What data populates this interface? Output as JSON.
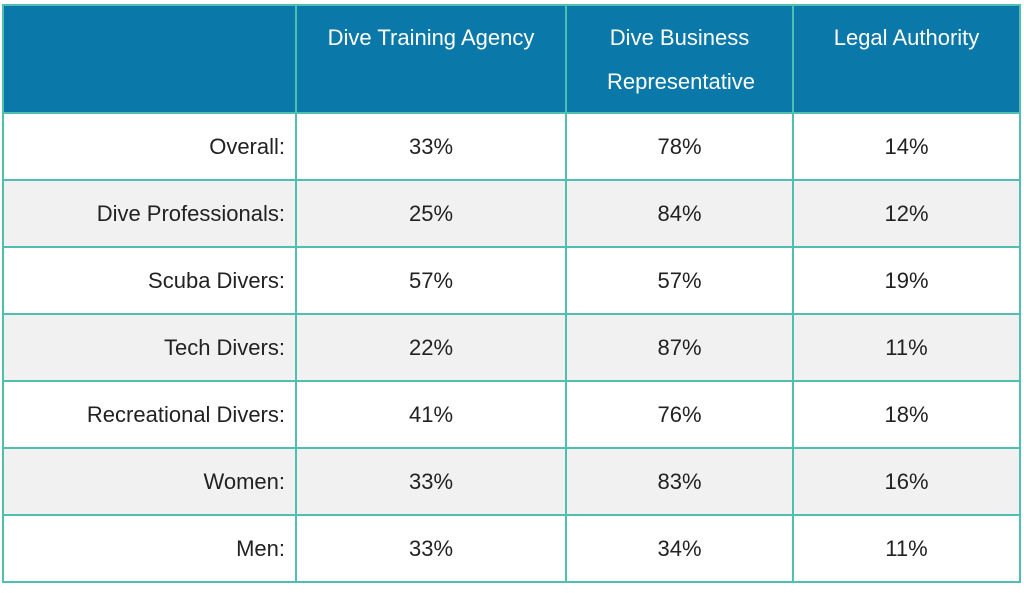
{
  "chart_data": {
    "type": "table",
    "columns": [
      "Dive Training Agency",
      "Dive Business Representative",
      "Legal Authority"
    ],
    "rows": [
      {
        "label": "Overall:",
        "values": [
          "33%",
          "78%",
          "14%"
        ]
      },
      {
        "label": "Dive Professionals:",
        "values": [
          "25%",
          "84%",
          "12%"
        ]
      },
      {
        "label": "Scuba Divers:",
        "values": [
          "57%",
          "57%",
          "19%"
        ]
      },
      {
        "label": "Tech Divers:",
        "values": [
          "22%",
          "87%",
          "11%"
        ]
      },
      {
        "label": "Recreational Divers:",
        "values": [
          "41%",
          "76%",
          "18%"
        ]
      },
      {
        "label": "Women:",
        "values": [
          "33%",
          "83%",
          "16%"
        ]
      },
      {
        "label": "Men:",
        "values": [
          "33%",
          "34%",
          "11%"
        ]
      }
    ],
    "colors": {
      "header_background": "#0a78a8",
      "header_text": "#ffffff",
      "border": "#4fc0b0",
      "alt_row_background": "#f1f1f1"
    }
  }
}
